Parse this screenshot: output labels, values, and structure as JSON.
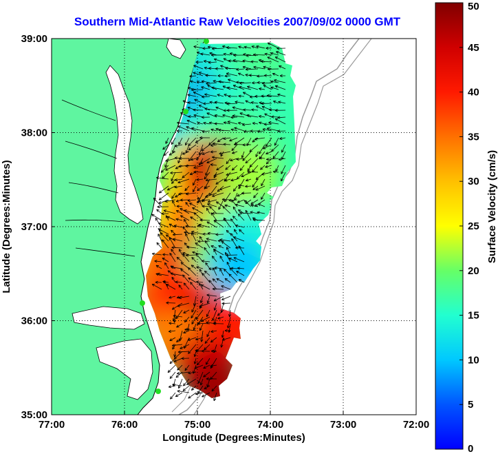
{
  "title": "Southern Mid-Atlantic Raw Velocities 2007/09/02 0000 GMT",
  "x_axis": {
    "label": "Longitude (Degrees:Minutes)",
    "ticks": [
      "77:00",
      "76:00",
      "75:00",
      "74:00",
      "73:00",
      "72:00"
    ]
  },
  "y_axis": {
    "label": "Latitude (Degrees:Minutes)",
    "ticks": [
      "39:00",
      "38:00",
      "37:00",
      "36:00",
      "35:00"
    ]
  },
  "colorbar": {
    "label": "Surface Velocity (cm/s)",
    "ticks": [
      "0",
      "5",
      "10",
      "15",
      "20",
      "25",
      "30",
      "35",
      "40",
      "45",
      "50"
    ],
    "min": 0,
    "max": 50
  },
  "colors": {
    "land": "#5ff5a0",
    "title": "#0000ff",
    "stations": "#22dd22"
  },
  "chart_data": {
    "type": "heatmap",
    "xlim": [
      -77,
      -72
    ],
    "ylim": [
      35,
      39
    ],
    "grid": "dotted",
    "velocity_field_lonlat_cms": [
      [
        -74.75,
        38.7,
        12
      ],
      [
        -74.45,
        38.75,
        16
      ],
      [
        -74.15,
        38.7,
        18
      ],
      [
        -74.85,
        38.3,
        8
      ],
      [
        -74.55,
        38.3,
        14
      ],
      [
        -74.2,
        38.25,
        16
      ],
      [
        -75.1,
        37.9,
        10
      ],
      [
        -74.85,
        37.9,
        16
      ],
      [
        -74.5,
        37.95,
        18
      ],
      [
        -74.2,
        37.85,
        18
      ],
      [
        -75.1,
        37.6,
        24
      ],
      [
        -74.85,
        37.6,
        42
      ],
      [
        -74.6,
        37.55,
        46
      ],
      [
        -74.3,
        37.55,
        22
      ],
      [
        -75.25,
        37.1,
        28
      ],
      [
        -74.95,
        37.1,
        40
      ],
      [
        -74.65,
        37.0,
        22
      ],
      [
        -74.35,
        36.9,
        14
      ],
      [
        -75.55,
        36.6,
        34
      ],
      [
        -75.1,
        36.6,
        42
      ],
      [
        -74.8,
        36.55,
        20
      ],
      [
        -74.45,
        36.55,
        10
      ],
      [
        -75.5,
        36.2,
        36
      ],
      [
        -75.2,
        36.25,
        40
      ],
      [
        -74.85,
        36.0,
        46
      ],
      [
        -74.5,
        35.95,
        40
      ],
      [
        -75.3,
        35.8,
        34
      ],
      [
        -74.9,
        35.55,
        44
      ],
      [
        -74.75,
        35.3,
        48
      ]
    ]
  }
}
